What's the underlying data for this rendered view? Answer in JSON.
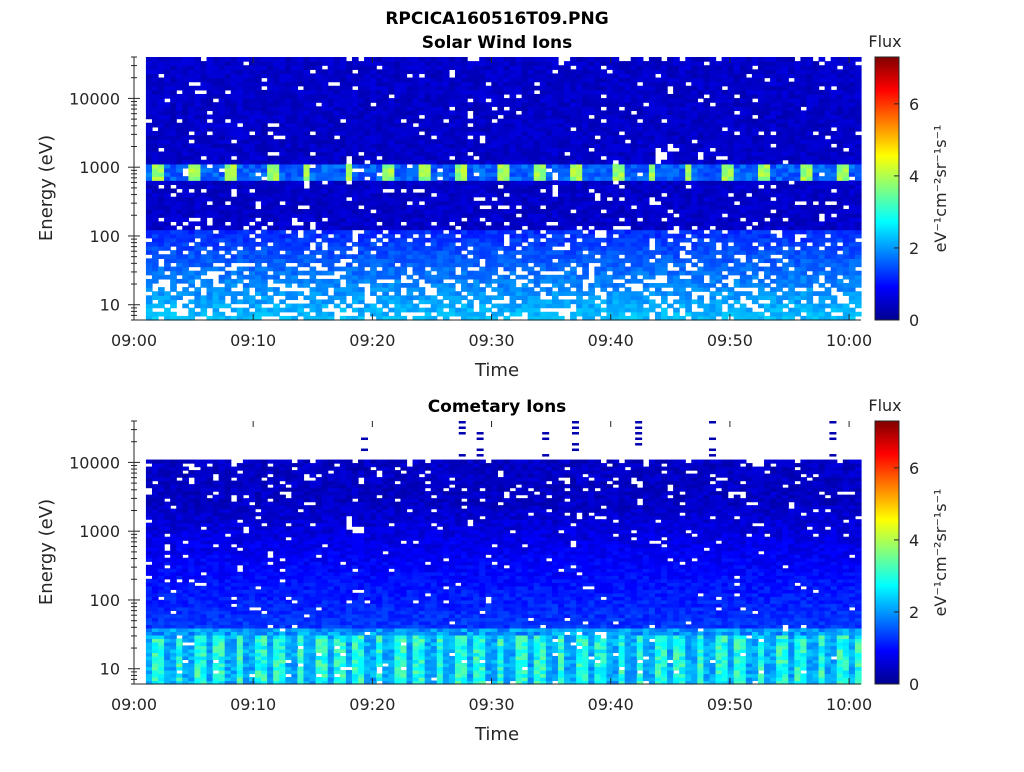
{
  "figure": {
    "filename_title": "RPCICA160516T09.PNG"
  },
  "chart_data": [
    {
      "type": "heatmap",
      "title": "Solar Wind Ions",
      "xlabel": "Time",
      "ylabel": "Energy (eV)",
      "y_scale": "log",
      "ylim": [
        6,
        40000
      ],
      "x_ticks": [
        "09:00",
        "09:10",
        "09:20",
        "09:30",
        "09:40",
        "09:50",
        "10:00"
      ],
      "x_range_minutes": [
        0,
        61
      ],
      "y_ticks": [
        10,
        100,
        1000,
        10000
      ],
      "y_tick_labels": [
        "10",
        "100",
        "1000",
        "10000"
      ],
      "colorbar": {
        "title": "Flux",
        "units": "eV⁻¹cm⁻²sr⁻¹s⁻¹",
        "range": [
          0,
          7.3
        ],
        "ticks": [
          0,
          2,
          4,
          6
        ]
      },
      "grid": false,
      "features": {
        "data_top_eV": 40000,
        "peak_energy_eV": 900,
        "peak_flux_range": [
          3.5,
          4.2
        ],
        "pulse_times_minutes": [
          2,
          5,
          8,
          11.5,
          14.5,
          18,
          21.5,
          24.5,
          27.5,
          31,
          34,
          37,
          40.5,
          43.5,
          46.5,
          50,
          53,
          56.5,
          59.5
        ],
        "low_energy_flux": 2
      }
    },
    {
      "type": "heatmap",
      "title": "Cometary Ions",
      "xlabel": "Time",
      "ylabel": "Energy (eV)",
      "y_scale": "log",
      "ylim": [
        6,
        40000
      ],
      "x_ticks": [
        "09:00",
        "09:10",
        "09:20",
        "09:30",
        "09:40",
        "09:50",
        "10:00"
      ],
      "x_range_minutes": [
        0,
        61
      ],
      "y_ticks": [
        10,
        100,
        1000,
        10000
      ],
      "y_tick_labels": [
        "10",
        "100",
        "1000",
        "10000"
      ],
      "colorbar": {
        "title": "Flux",
        "units": "eV⁻¹cm⁻²sr⁻¹s⁻¹",
        "range": [
          0,
          7.3
        ],
        "ticks": [
          0,
          2,
          4,
          6
        ]
      },
      "grid": false,
      "features": {
        "data_top_eV": 11000,
        "low_energy_flux_range": [
          2.5,
          3.5
        ],
        "high_energy_spike_times_minutes": [
          19.3,
          27.5,
          29,
          34.5,
          37,
          42.3,
          48.5,
          58.6
        ],
        "spike_top_eV": 40000
      }
    }
  ]
}
